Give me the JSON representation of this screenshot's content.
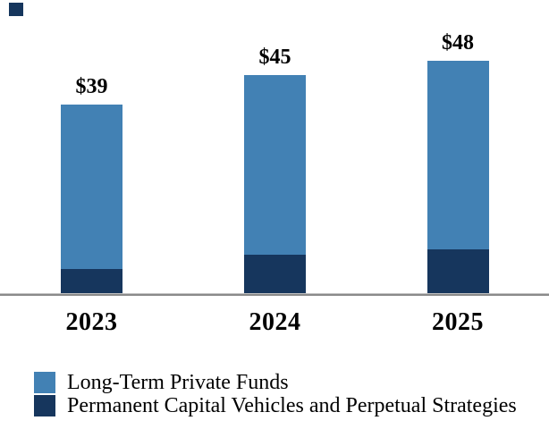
{
  "chart_data": {
    "type": "bar",
    "stacked": true,
    "title": "",
    "xlabel": "",
    "ylabel": "",
    "categories": [
      "2023",
      "2024",
      "2025"
    ],
    "series": [
      {
        "name": "Long-Term Private Funds",
        "color": "#4281B4",
        "values": [
          34,
          37,
          39
        ]
      },
      {
        "name": "Permanent Capital Vehicles and Perpetual Strategies",
        "color": "#16365D",
        "values": [
          5,
          8,
          9
        ]
      }
    ],
    "totals": [
      39,
      45,
      48
    ],
    "total_labels": [
      "$39",
      "$45",
      "$48"
    ],
    "ylim": [
      0,
      52
    ],
    "grid": false,
    "axis_line_color": "#8a8a8a",
    "legend_position": "bottom-left"
  }
}
